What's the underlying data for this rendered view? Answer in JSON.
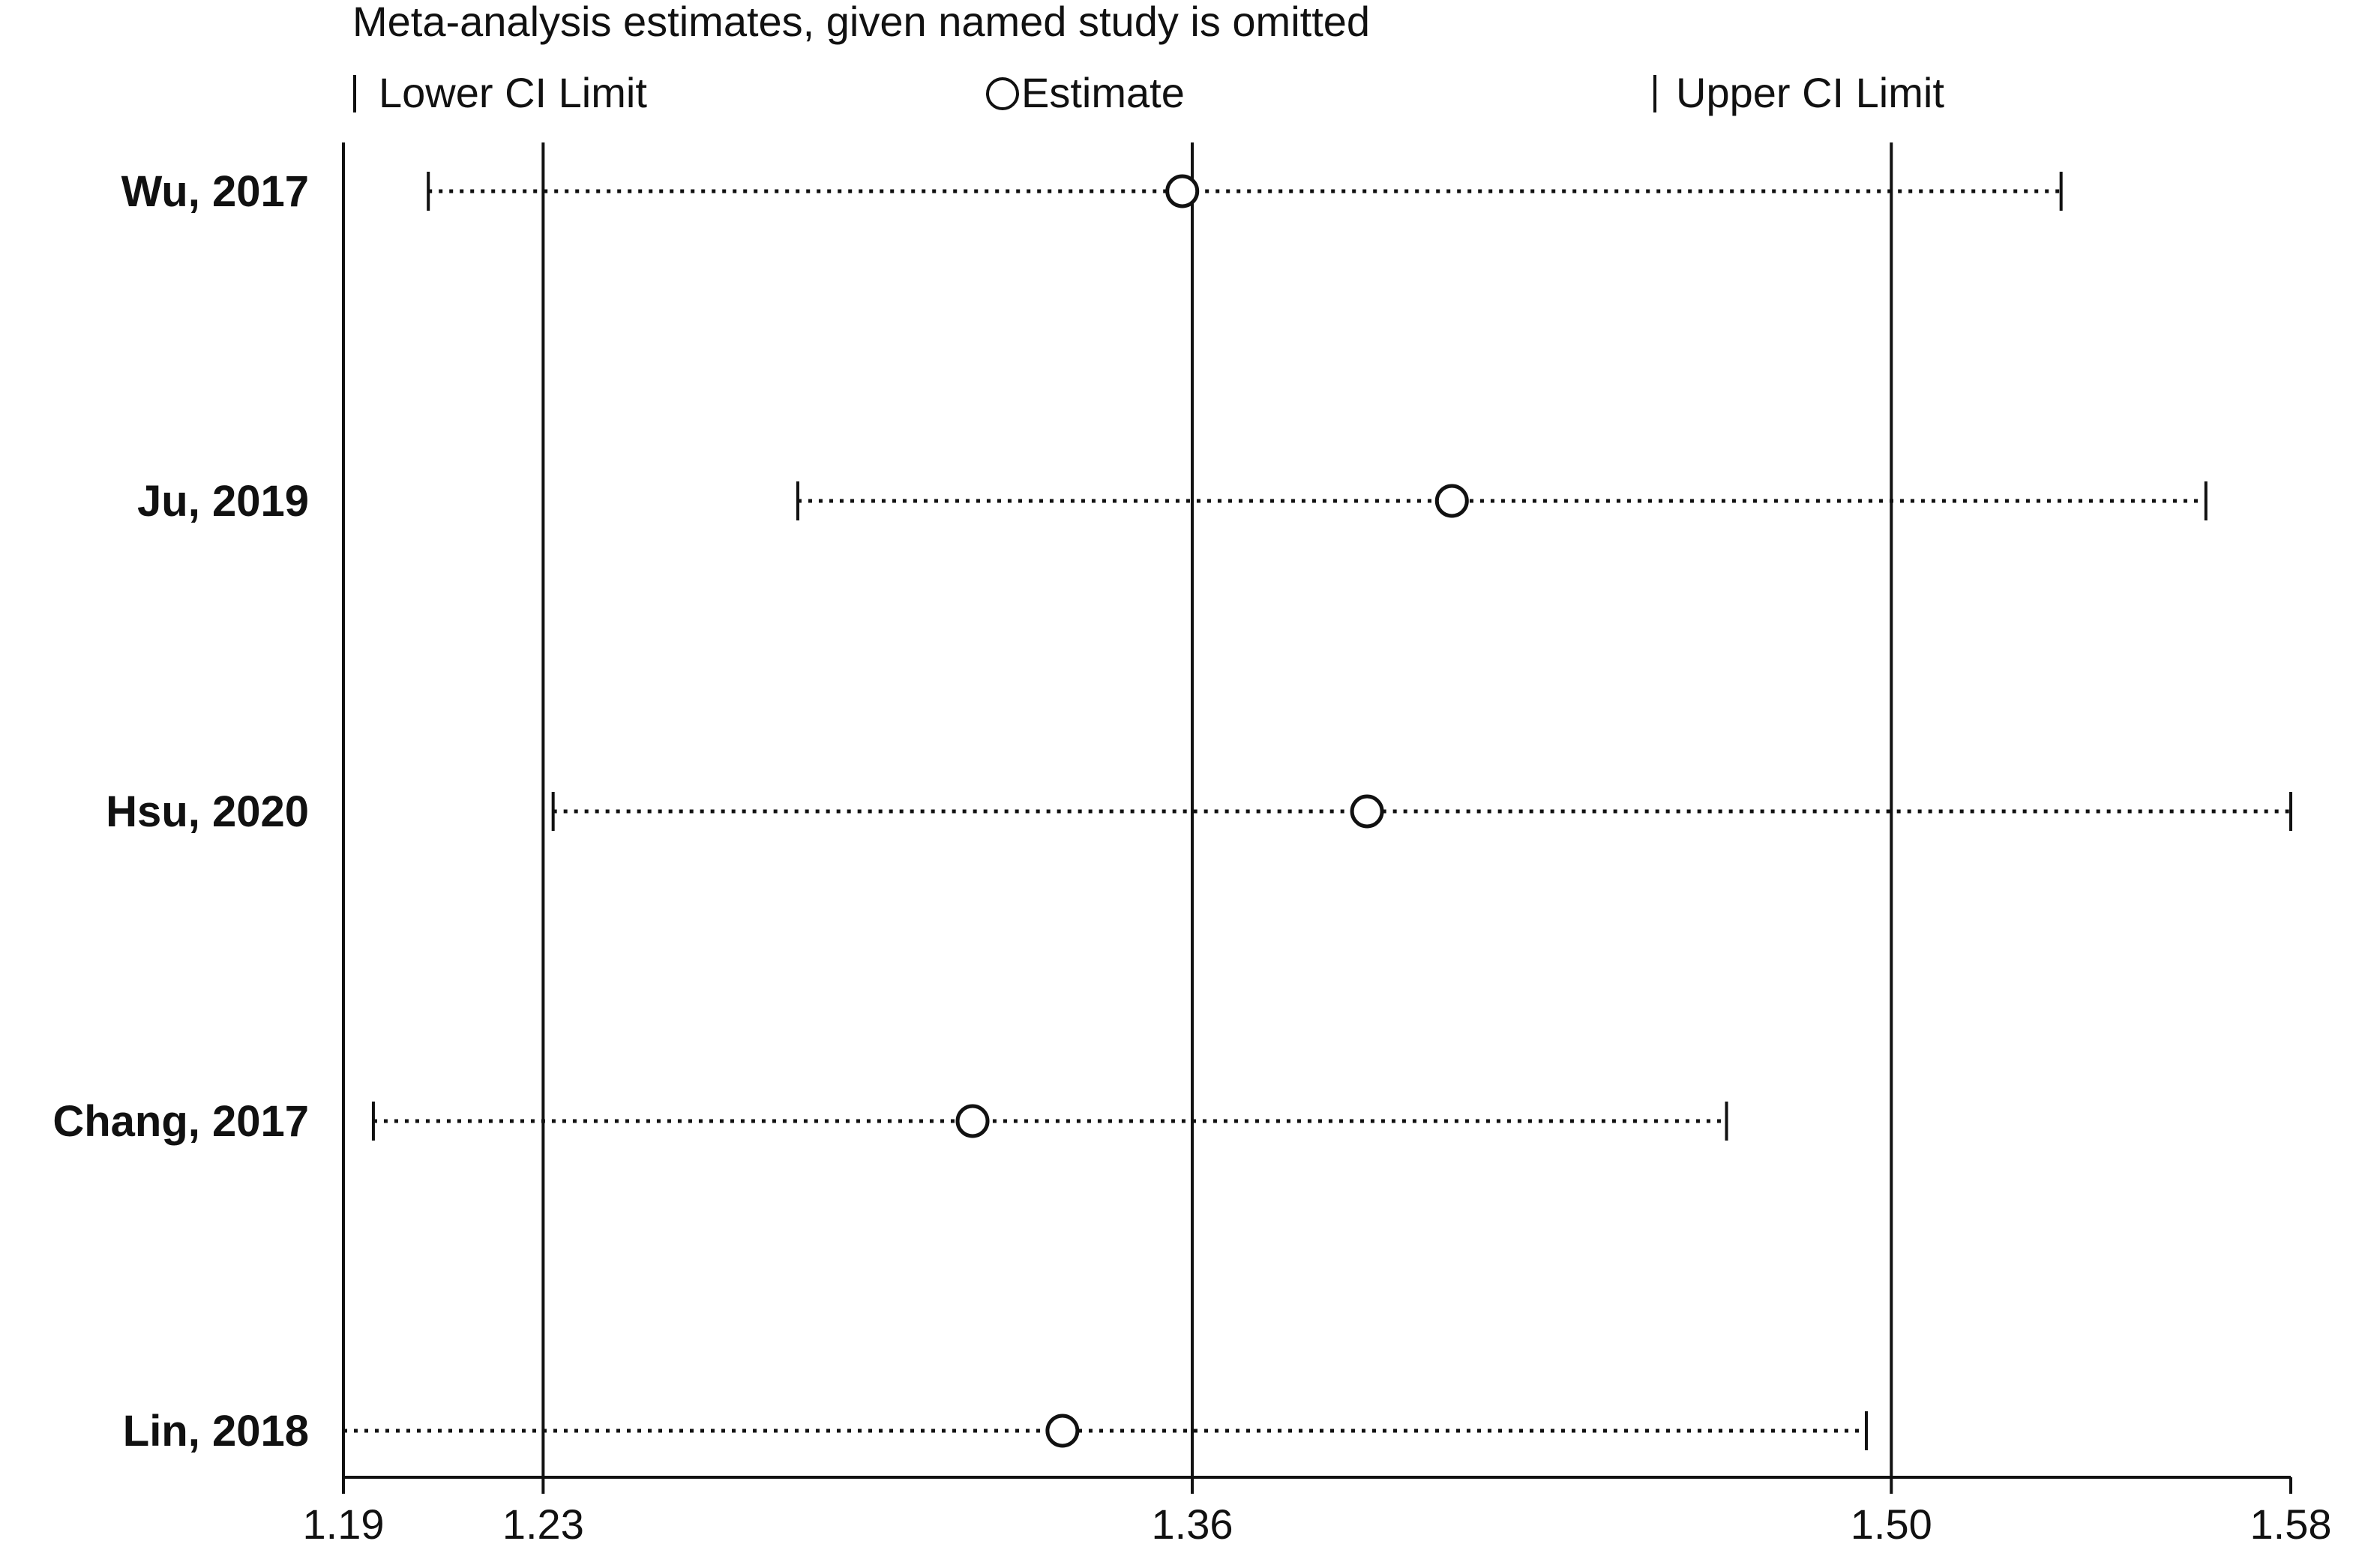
{
  "chart_data": {
    "type": "scatter",
    "title": "Meta-analysis estimates, given named study is omitted",
    "legend": {
      "placement": "top",
      "items": [
        {
          "name": "Lower CI Limit",
          "marker": "bar"
        },
        {
          "name": "Estimate",
          "marker": "circle"
        },
        {
          "name": "Upper CI Limit",
          "marker": "bar"
        }
      ]
    },
    "categories": [
      "Wu, 2017",
      "Ju, 2019",
      "Hsu, 2020",
      "Chang, 2017",
      "Lin, 2018"
    ],
    "series": [
      {
        "name": "Lower CI Limit",
        "values": [
          1.207,
          1.281,
          1.232,
          1.196,
          1.19
        ]
      },
      {
        "name": "Estimate",
        "values": [
          1.358,
          1.412,
          1.395,
          1.316,
          1.334
        ]
      },
      {
        "name": "Upper CI Limit",
        "values": [
          1.534,
          1.563,
          1.58,
          1.467,
          1.495
        ]
      }
    ],
    "xlim": [
      1.19,
      1.58
    ],
    "xticks": [
      {
        "value": 1.19,
        "label": "1.19"
      },
      {
        "value": 1.23,
        "label": "1.23"
      },
      {
        "value": 1.36,
        "label": "1.36"
      },
      {
        "value": 1.5,
        "label": "1.50"
      },
      {
        "value": 1.58,
        "label": "1.58"
      }
    ],
    "reference_lines": [
      1.19,
      1.23,
      1.36,
      1.5
    ],
    "grid": false,
    "colors": {
      "line": "#111111",
      "background": "#ffffff"
    }
  }
}
